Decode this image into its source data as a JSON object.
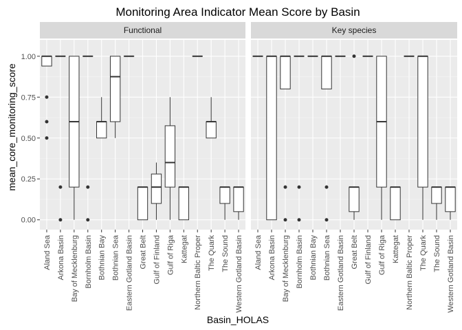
{
  "chart_data": {
    "type": "boxplot",
    "title": "Monitoring Area Indicator Mean Score by Basin",
    "xlabel": "Basin_HOLAS",
    "ylabel": "mean_core_monitoring_score",
    "ylim": [
      -0.06,
      1.1
    ],
    "yticks": [
      0,
      0.25,
      0.5,
      0.75,
      1
    ],
    "ytick_labels": [
      "0.00",
      "0.25",
      "0.50",
      "0.75",
      "1.00"
    ],
    "grid": true,
    "categories": [
      "Aland Sea",
      "Arkona Basin",
      "Bay of Mecklenburg",
      "Bornholm Basin",
      "Bothnian Bay",
      "Bothnian Sea",
      "Eastern Gotland Basin",
      "Great Belt",
      "Gulf of Finland",
      "Gulf of Riga",
      "Kattegat",
      "Northern Baltic Proper",
      "The Quark",
      "The Sound",
      "Western Gotland Basin"
    ],
    "facets": [
      {
        "name": "Functional",
        "boxes": [
          {
            "min": 0.94,
            "q1": 0.94,
            "median": 1.0,
            "q3": 1.0,
            "max": 1.0,
            "outliers": [
              0.75,
              0.6,
              0.5
            ]
          },
          {
            "min": 1.0,
            "q1": 1.0,
            "median": 1.0,
            "q3": 1.0,
            "max": 1.0,
            "outliers": [
              0.2,
              0.0
            ]
          },
          {
            "min": 0.0,
            "q1": 0.2,
            "median": 0.6,
            "q3": 1.0,
            "max": 1.0,
            "outliers": []
          },
          {
            "min": 1.0,
            "q1": 1.0,
            "median": 1.0,
            "q3": 1.0,
            "max": 1.0,
            "outliers": [
              0.2,
              0.0
            ]
          },
          {
            "min": 0.5,
            "q1": 0.5,
            "median": 0.6,
            "q3": 0.6,
            "max": 0.75,
            "outliers": []
          },
          {
            "min": 0.5,
            "q1": 0.6,
            "median": 0.875,
            "q3": 1.0,
            "max": 1.0,
            "outliers": []
          },
          {
            "min": 1.0,
            "q1": 1.0,
            "median": 1.0,
            "q3": 1.0,
            "max": 1.0,
            "outliers": []
          },
          {
            "min": 0.0,
            "q1": 0.0,
            "median": 0.2,
            "q3": 0.2,
            "max": 0.2,
            "outliers": []
          },
          {
            "min": 0.0,
            "q1": 0.1,
            "median": 0.2,
            "q3": 0.28,
            "max": 0.35,
            "outliers": []
          },
          {
            "min": 0.0,
            "q1": 0.2,
            "median": 0.35,
            "q3": 0.575,
            "max": 0.75,
            "outliers": []
          },
          {
            "min": 0.0,
            "q1": 0.0,
            "median": 0.2,
            "q3": 0.2,
            "max": 0.2,
            "outliers": []
          },
          {
            "min": 1.0,
            "q1": 1.0,
            "median": 1.0,
            "q3": 1.0,
            "max": 1.0,
            "outliers": []
          },
          {
            "min": 0.5,
            "q1": 0.5,
            "median": 0.6,
            "q3": 0.6,
            "max": 0.75,
            "outliers": []
          },
          {
            "min": 0.0,
            "q1": 0.1,
            "median": 0.2,
            "q3": 0.2,
            "max": 0.2,
            "outliers": []
          },
          {
            "min": 0.0,
            "q1": 0.05,
            "median": 0.2,
            "q3": 0.2,
            "max": 0.2,
            "outliers": []
          }
        ]
      },
      {
        "name": "Key species",
        "boxes": [
          {
            "min": 1.0,
            "q1": 1.0,
            "median": 1.0,
            "q3": 1.0,
            "max": 1.0,
            "outliers": []
          },
          {
            "min": 0.0,
            "q1": 0.0,
            "median": 1.0,
            "q3": 1.0,
            "max": 1.0,
            "outliers": []
          },
          {
            "min": 0.8,
            "q1": 0.8,
            "median": 1.0,
            "q3": 1.0,
            "max": 1.0,
            "outliers": [
              0.2,
              0.0
            ]
          },
          {
            "min": 1.0,
            "q1": 1.0,
            "median": 1.0,
            "q3": 1.0,
            "max": 1.0,
            "outliers": [
              0.2,
              0.0
            ]
          },
          {
            "min": 1.0,
            "q1": 1.0,
            "median": 1.0,
            "q3": 1.0,
            "max": 1.0,
            "outliers": []
          },
          {
            "min": 0.8,
            "q1": 0.8,
            "median": 1.0,
            "q3": 1.0,
            "max": 1.0,
            "outliers": [
              0.2,
              0.0
            ]
          },
          {
            "min": 1.0,
            "q1": 1.0,
            "median": 1.0,
            "q3": 1.0,
            "max": 1.0,
            "outliers": []
          },
          {
            "min": 0.0,
            "q1": 0.05,
            "median": 0.2,
            "q3": 0.2,
            "max": 0.2,
            "outliers": [
              1.0
            ]
          },
          {
            "min": 1.0,
            "q1": 1.0,
            "median": 1.0,
            "q3": 1.0,
            "max": 1.0,
            "outliers": []
          },
          {
            "min": 0.0,
            "q1": 0.2,
            "median": 0.6,
            "q3": 1.0,
            "max": 1.0,
            "outliers": []
          },
          {
            "min": 0.0,
            "q1": 0.0,
            "median": 0.2,
            "q3": 0.2,
            "max": 0.2,
            "outliers": []
          },
          {
            "min": 1.0,
            "q1": 1.0,
            "median": 1.0,
            "q3": 1.0,
            "max": 1.0,
            "outliers": []
          },
          {
            "min": 0.0,
            "q1": 0.2,
            "median": 1.0,
            "q3": 1.0,
            "max": 1.0,
            "outliers": []
          },
          {
            "min": 0.0,
            "q1": 0.1,
            "median": 0.2,
            "q3": 0.2,
            "max": 0.2,
            "outliers": []
          },
          {
            "min": 0.0,
            "q1": 0.05,
            "median": 0.2,
            "q3": 0.2,
            "max": 0.2,
            "outliers": []
          }
        ]
      }
    ],
    "colors": {
      "panel_bg": "#ebebeb",
      "strip_bg": "#d9d9d9",
      "grid_major": "#ffffff",
      "grid_minor": "#f5f5f5",
      "box_fill": "#ffffff",
      "box_stroke": "#333333",
      "point": "#333333"
    }
  }
}
